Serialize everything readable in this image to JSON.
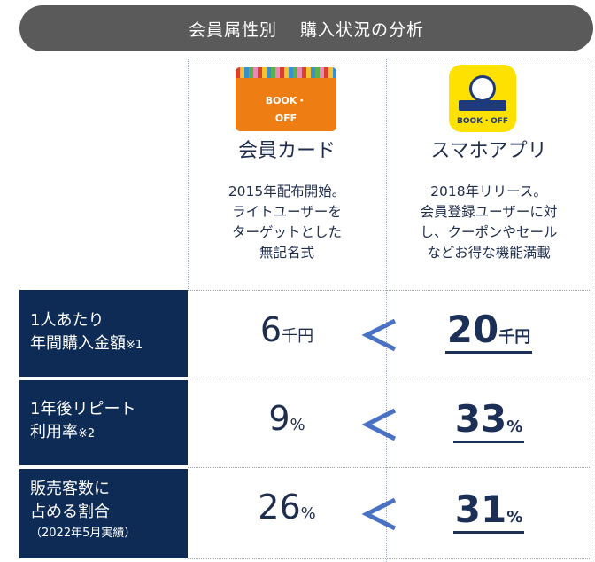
{
  "banner": {
    "part1": "会員属性別",
    "part2": "購入状況の分析"
  },
  "columns": [
    {
      "logo_text": "BOOK・OFF",
      "title": "会員カード",
      "desc": [
        "2015年配布開始。",
        "ライトユーザーを",
        "ターゲットとした",
        "無記名式"
      ]
    },
    {
      "logo_text": "BOOK・OFF",
      "title": "スマホアプリ",
      "desc": [
        "2018年リリース。",
        "会員登録ユーザーに対",
        "し、クーポンやセール",
        "などお得な機能満載"
      ]
    }
  ],
  "rows": [
    {
      "label": [
        "1人あたり",
        "年間購入金額"
      ],
      "note": "※1",
      "sub": "",
      "card_value": "6",
      "card_unit": "千円",
      "app_value": "20",
      "app_unit": "千円"
    },
    {
      "label": [
        "1年後リピート",
        "利用率"
      ],
      "note": "※2",
      "sub": "",
      "card_value": "9",
      "card_unit": "%",
      "app_value": "33",
      "app_unit": "%"
    },
    {
      "label": [
        "販売客数に",
        "占める割合"
      ],
      "note": "",
      "sub": "（2022年5月実績）",
      "card_value": "26",
      "card_unit": "%",
      "app_value": "31",
      "app_unit": "%"
    }
  ],
  "colors": {
    "banner": "#5a5a5a",
    "label_bg": "#0d2b55",
    "arrow": "#4a72c4",
    "card": "#ee7d14",
    "app": "#ffe100"
  },
  "icons": [
    "less-than-icon"
  ]
}
